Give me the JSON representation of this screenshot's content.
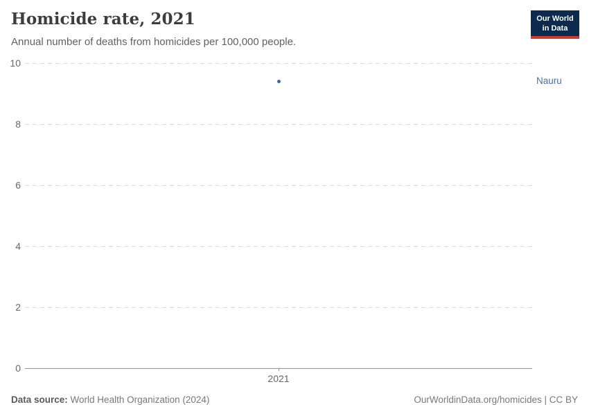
{
  "header": {
    "title": "Homicide rate, 2021",
    "subtitle": "Annual number of deaths from homicides per 100,000 people.",
    "logo": {
      "line1": "Our World",
      "line2": "in Data"
    }
  },
  "colors": {
    "logo_bg": "#0b2a4e",
    "logo_accent": "#d5372d",
    "point": "#3e63a8",
    "entity_label": "#4e6ca6"
  },
  "chart_data": {
    "type": "scatter",
    "title": "Homicide rate, 2021",
    "subtitle": "Annual number of deaths from homicides per 100,000 people.",
    "entities": [
      {
        "name": "Nauru",
        "year": 2021,
        "value": 9.4
      }
    ],
    "y_axis": {
      "ticks": [
        0,
        2,
        4,
        6,
        8,
        10
      ],
      "range": [
        0,
        10
      ],
      "gridlines": "dashed"
    },
    "x_axis": {
      "ticks": [
        "2021"
      ]
    },
    "legend_position": "right-of-point",
    "grid": true
  },
  "footer": {
    "source_label": "Data source:",
    "source_value": "World Health Organization (2024)",
    "attribution_link": "OurWorldinData.org/homicides",
    "attribution_suffix": " | CC BY"
  }
}
